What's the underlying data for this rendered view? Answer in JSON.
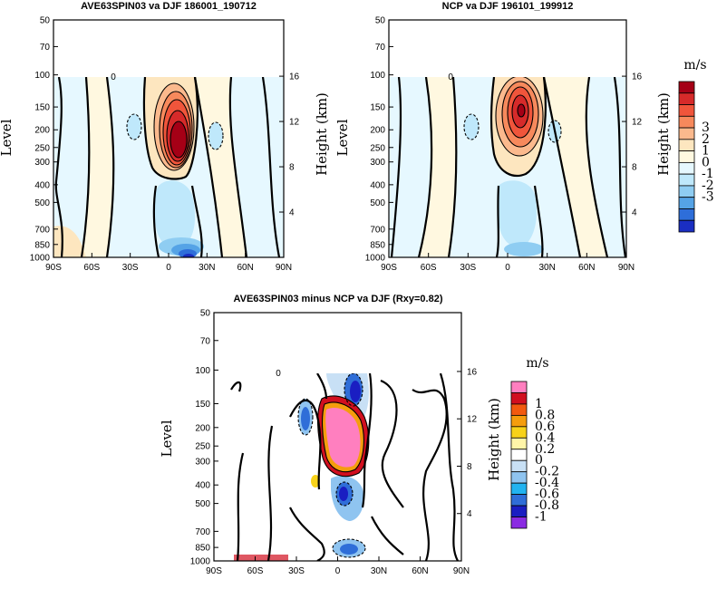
{
  "chart_data": [
    {
      "type": "contour",
      "title": "AVE63SPIN03 va DJF 186001_190712",
      "ylabel": "Level",
      "y2label": "Height (km)",
      "x_ticks": [
        "90S",
        "60S",
        "30S",
        "0",
        "30N",
        "60N",
        "90N"
      ],
      "x_values": [
        -90,
        -60,
        -30,
        0,
        30,
        60,
        90
      ],
      "y_ticks": [
        "50",
        "70",
        "100",
        "150",
        "200",
        "250",
        "300",
        "400",
        "500",
        "700",
        "850",
        "1000"
      ],
      "y_values": [
        50,
        70,
        100,
        150,
        200,
        250,
        300,
        400,
        500,
        700,
        850,
        1000
      ],
      "y2_ticks": [
        "16",
        "12",
        "8",
        "4"
      ],
      "y2_values": [
        16,
        12,
        8,
        4
      ],
      "ylim": [
        1000,
        50
      ],
      "xlim": [
        -90,
        90
      ],
      "colorbar": {
        "title": "m/s",
        "labels": [
          "3",
          "2",
          "1",
          "0",
          "-1",
          "-2",
          "-3"
        ],
        "colors": [
          "#a50016",
          "#d62a2a",
          "#f0553b",
          "#f7895c",
          "#fbb98d",
          "#fde6bf",
          "#fff8e0",
          "#e6f8ff",
          "#bfe8fb",
          "#8fcdf2",
          "#55a3e6",
          "#2e6ed9",
          "#1a2ec2"
        ]
      },
      "features": [
        {
          "label": "upper-tropospheric maximum",
          "lon": 5,
          "level": 210,
          "value": 3.5,
          "sign": "positive"
        },
        {
          "label": "near-surface minimum",
          "lon": 8,
          "level": 960,
          "value": -3.0,
          "sign": "negative"
        },
        {
          "label": "mid-level minimum",
          "lon": 3,
          "level": 480,
          "value": -1.2,
          "sign": "negative"
        }
      ],
      "zero_contour_label": "0"
    },
    {
      "type": "contour",
      "title": "NCP va DJF 196101_199912",
      "ylabel": "Level",
      "y2label": "Height (km)",
      "x_ticks": [
        "90S",
        "60S",
        "30S",
        "0",
        "30N",
        "60N",
        "90N"
      ],
      "x_values": [
        -90,
        -60,
        -30,
        0,
        30,
        60,
        90
      ],
      "y_ticks": [
        "50",
        "70",
        "100",
        "150",
        "200",
        "250",
        "300",
        "400",
        "500",
        "700",
        "850",
        "1000"
      ],
      "y_values": [
        50,
        70,
        100,
        150,
        200,
        250,
        300,
        400,
        500,
        700,
        850,
        1000
      ],
      "y2_ticks": [
        "16",
        "12",
        "8",
        "4"
      ],
      "y2_values": [
        16,
        12,
        8,
        4
      ],
      "ylim": [
        1000,
        50
      ],
      "xlim": [
        -90,
        90
      ],
      "features": [
        {
          "label": "upper-tropospheric maximum",
          "lon": 10,
          "level": 160,
          "value": 2.8,
          "sign": "positive"
        },
        {
          "label": "mid-level minimum",
          "lon": 5,
          "level": 500,
          "value": -0.8,
          "sign": "negative"
        },
        {
          "label": "near-surface minimum",
          "lon": 10,
          "level": 950,
          "value": -1.5,
          "sign": "negative"
        }
      ],
      "zero_contour_label": "0"
    },
    {
      "type": "contour",
      "title": "AVE63SPIN03 minus NCP va DJF (Rxy=0.82)",
      "ylabel": "Level",
      "y2label": "Height (km)",
      "x_ticks": [
        "90S",
        "60S",
        "30S",
        "0",
        "30N",
        "60N",
        "90N"
      ],
      "x_values": [
        -90,
        -60,
        -30,
        0,
        30,
        60,
        90
      ],
      "y_ticks": [
        "50",
        "70",
        "100",
        "150",
        "200",
        "250",
        "300",
        "400",
        "500",
        "700",
        "850",
        "1000"
      ],
      "y_values": [
        50,
        70,
        100,
        150,
        200,
        250,
        300,
        400,
        500,
        700,
        850,
        1000
      ],
      "y2_ticks": [
        "16",
        "12",
        "8",
        "4"
      ],
      "y2_values": [
        16,
        12,
        8,
        4
      ],
      "ylim": [
        1000,
        50
      ],
      "xlim": [
        -90,
        90
      ],
      "colorbar": {
        "title": "m/s",
        "labels": [
          "1",
          "0.8",
          "0.6",
          "0.4",
          "0.2",
          "0",
          "-0.2",
          "-0.4",
          "-0.6",
          "-0.8",
          "-1"
        ],
        "colors": [
          "#ff7fbf",
          "#d10f1f",
          "#f25a0f",
          "#f59d0d",
          "#f7d21a",
          "#fff5a8",
          "#ffffff",
          "#c8e0f5",
          "#8fc4f0",
          "#22b3f0",
          "#2f6ed8",
          "#1a1ec2",
          "#8a2be2"
        ]
      },
      "features": [
        {
          "label": "upper-tropospheric positive difference",
          "lon": 2,
          "level": 230,
          "value": 1.2,
          "sign": "positive"
        },
        {
          "label": "mid-level negative difference",
          "lon": 2,
          "level": 460,
          "value": -1.0,
          "sign": "negative"
        },
        {
          "label": "near-surface negative difference",
          "lon": 5,
          "level": 900,
          "value": -0.9,
          "sign": "negative"
        },
        {
          "label": "upper negative difference",
          "lon": 8,
          "level": 120,
          "value": -0.8,
          "sign": "negative"
        }
      ],
      "zero_contour_label": "0"
    }
  ]
}
